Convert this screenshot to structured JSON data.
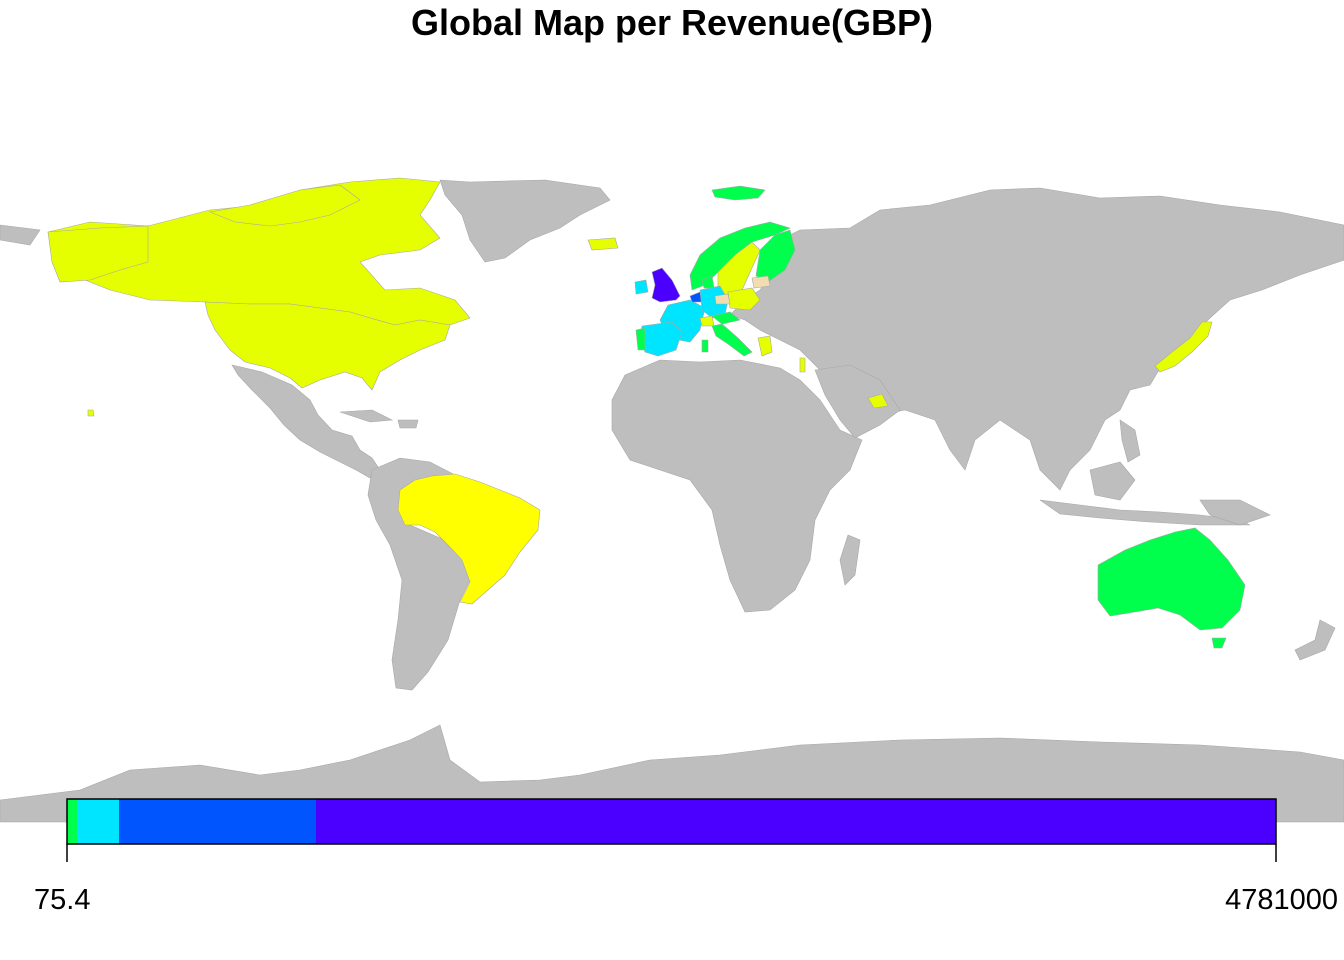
{
  "title": "Global Map per Revenue(GBP)",
  "map": {
    "projection": "equirectangular",
    "no_data_color": "#BEBEBE",
    "border_color": "#A8A8A8",
    "countries": [
      {
        "name": "United Kingdom",
        "color": "#4B00FF"
      },
      {
        "name": "Netherlands",
        "color": "#0055FF"
      },
      {
        "name": "France",
        "color": "#00E5FF"
      },
      {
        "name": "Germany",
        "color": "#00E5FF"
      },
      {
        "name": "Spain",
        "color": "#00E5FF"
      },
      {
        "name": "Ireland",
        "color": "#00E5FF"
      },
      {
        "name": "Belgium",
        "color": "#00E5FF"
      },
      {
        "name": "Switzerland",
        "color": "#00E5FF"
      },
      {
        "name": "Australia",
        "color": "#00FF4D"
      },
      {
        "name": "Norway",
        "color": "#00FF4D"
      },
      {
        "name": "Iceland",
        "color": "#00FF4D"
      },
      {
        "name": "Finland",
        "color": "#00FF4D"
      },
      {
        "name": "Portugal",
        "color": "#00FF4D"
      },
      {
        "name": "Italy",
        "color": "#00FF4D"
      },
      {
        "name": "Austria",
        "color": "#00FF4D"
      },
      {
        "name": "Denmark",
        "color": "#00FF4D"
      },
      {
        "name": "Sweden",
        "color": "#E6FF00"
      },
      {
        "name": "Poland",
        "color": "#E6FF00"
      },
      {
        "name": "Greece",
        "color": "#E6FF00"
      },
      {
        "name": "Canada",
        "color": "#E6FF00"
      },
      {
        "name": "United States",
        "color": "#E6FF00"
      },
      {
        "name": "Japan",
        "color": "#E6FF00"
      },
      {
        "name": "United Arab Emirates",
        "color": "#E6FF00"
      },
      {
        "name": "Israel",
        "color": "#E6FF00"
      },
      {
        "name": "Cyprus",
        "color": "#E6FF00"
      },
      {
        "name": "Brazil",
        "color": "#FFFF00"
      },
      {
        "name": "Lithuania",
        "color": "#F2DDB0"
      },
      {
        "name": "Czech Republic",
        "color": "#F2DDB0"
      }
    ]
  },
  "legend": {
    "min_label": "75.4",
    "max_label": "4781000",
    "min": 75.4,
    "max": 4781000,
    "bins": [
      {
        "color": "#00FF4D",
        "from": 75.4,
        "to": 40000
      },
      {
        "color": "#00E5FF",
        "from": 40000,
        "to": 208000
      },
      {
        "color": "#0055FF",
        "from": 208000,
        "to": 985000
      },
      {
        "color": "#4B00FF",
        "from": 985000,
        "to": 4781000
      }
    ]
  },
  "chart_data": {
    "type": "choropleth",
    "title": "Global Map per Revenue(GBP)",
    "scale_min": 75.4,
    "scale_max": 4781000,
    "palette_bins": [
      {
        "color": "#00FF4D",
        "upper": 40000
      },
      {
        "color": "#00E5FF",
        "upper": 208000
      },
      {
        "color": "#0055FF",
        "upper": 985000
      },
      {
        "color": "#4B00FF",
        "upper": 4781000
      }
    ]
  }
}
